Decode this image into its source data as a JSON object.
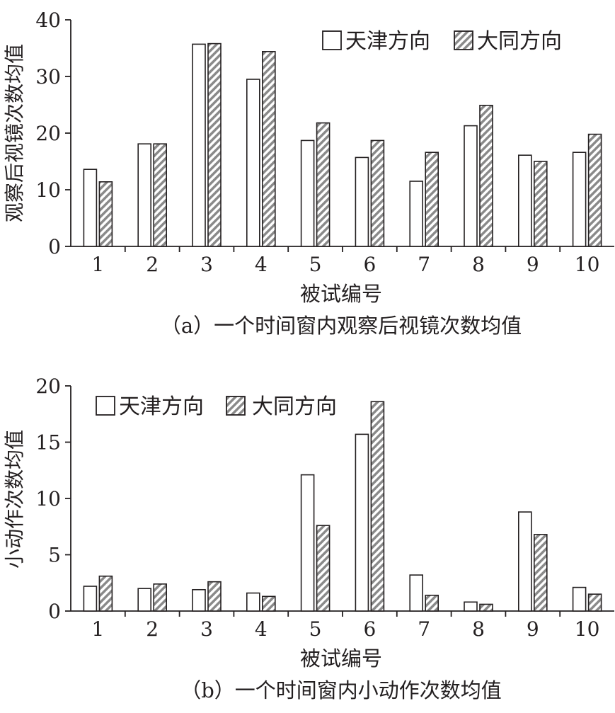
{
  "chart_data": [
    {
      "type": "bar",
      "title": "",
      "caption": "（a）一个时间窗内观察后视镜次数均值",
      "xlabel": "被试编号",
      "ylabel": "观察后视镜次数均值",
      "categories": [
        "1",
        "2",
        "3",
        "4",
        "5",
        "6",
        "7",
        "8",
        "9",
        "10"
      ],
      "yticks": [
        "0",
        "10",
        "20",
        "30",
        "40"
      ],
      "ylim": [
        0,
        40
      ],
      "legend_position": "top-right",
      "series": [
        {
          "name": "天津方向",
          "pattern": "white",
          "values": [
            13.6,
            18.1,
            35.7,
            29.5,
            18.7,
            15.7,
            11.5,
            21.3,
            16.1,
            16.6
          ]
        },
        {
          "name": "大同方向",
          "pattern": "diagonal-hatch",
          "values": [
            11.4,
            18.1,
            35.8,
            34.4,
            21.8,
            18.7,
            16.6,
            24.9,
            15.0,
            19.8
          ]
        }
      ]
    },
    {
      "type": "bar",
      "title": "",
      "caption": "（b）一个时间窗内小动作次数均值",
      "xlabel": "被试编号",
      "ylabel": "小动作次数均值",
      "categories": [
        "1",
        "2",
        "3",
        "4",
        "5",
        "6",
        "7",
        "8",
        "9",
        "10"
      ],
      "yticks": [
        "0",
        "5",
        "10",
        "15",
        "20"
      ],
      "ylim": [
        0,
        20
      ],
      "legend_position": "top-left",
      "series": [
        {
          "name": "天津方向",
          "pattern": "white",
          "values": [
            2.2,
            2.0,
            1.9,
            1.6,
            12.1,
            15.7,
            3.2,
            0.8,
            8.8,
            2.1
          ]
        },
        {
          "name": "大同方向",
          "pattern": "diagonal-hatch",
          "values": [
            3.1,
            2.4,
            2.6,
            1.3,
            7.6,
            18.6,
            1.4,
            0.6,
            6.8,
            1.5
          ]
        }
      ]
    }
  ],
  "colors": {
    "ink": "#231f20",
    "bar_fill": "#ffffff",
    "hatch_stripe": "#8a8a8a"
  }
}
